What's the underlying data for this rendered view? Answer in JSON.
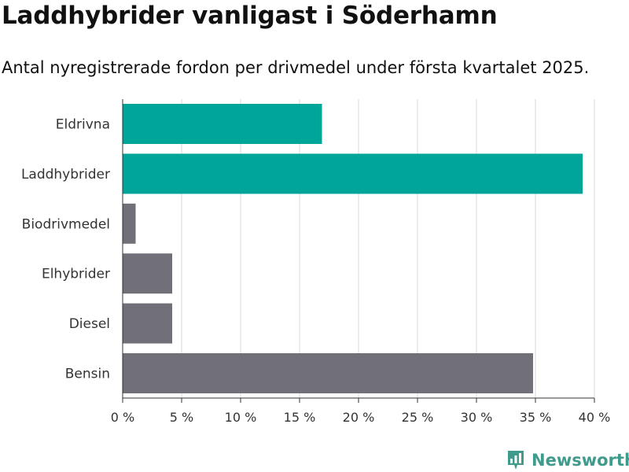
{
  "colors": {
    "highlight": "#00a59a",
    "default": "#717078",
    "grid": "#d9d9d9",
    "brand": "#3f9b8c"
  },
  "brand": {
    "name": "Newsworthy",
    "icon": "newsworthy-logo-icon"
  },
  "chart_data": {
    "type": "bar",
    "orientation": "horizontal",
    "title": "Laddhybrider vanligast i Söderhamn",
    "subtitle": "Antal nyregistrerade fordon per drivmedel under första kvartalet 2025.",
    "categories": [
      "Eldrivna",
      "Laddhybrider",
      "Biodrivmedel",
      "Elhybrider",
      "Diesel",
      "Bensin"
    ],
    "values": [
      16.9,
      39.0,
      1.1,
      4.2,
      4.2,
      34.8
    ],
    "highlighted": [
      true,
      true,
      false,
      false,
      false,
      false
    ],
    "xlim": [
      0,
      40
    ],
    "xticks": [
      0,
      5,
      10,
      15,
      20,
      25,
      30,
      35,
      40
    ],
    "xtick_labels": [
      "0 %",
      "5 %",
      "10 %",
      "15 %",
      "20 %",
      "25 %",
      "30 %",
      "35 %",
      "40 %"
    ],
    "xlabel": "",
    "ylabel": "",
    "grid": true,
    "legend": "none"
  }
}
